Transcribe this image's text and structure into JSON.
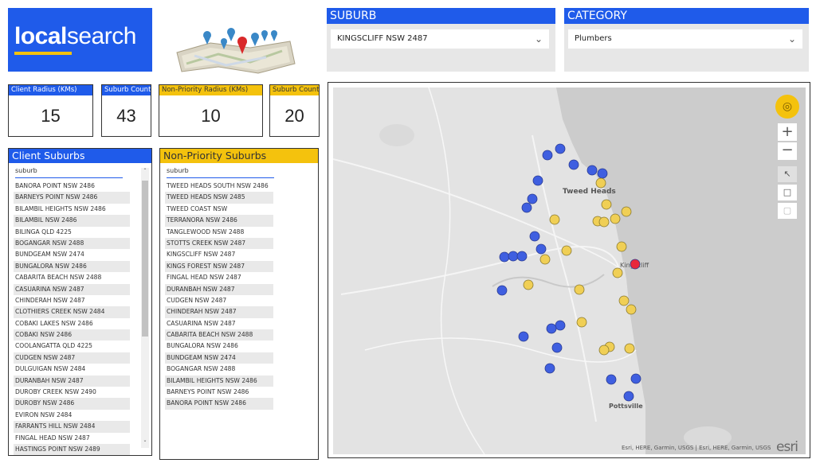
{
  "brand": {
    "logo_text": "localsearch"
  },
  "suburb_slicer": {
    "header": "SUBURB",
    "selected": "KINGSCLIFF NSW 2487"
  },
  "category_slicer": {
    "header": "CATEGORY",
    "selected": "Plumbers"
  },
  "cards": {
    "client_radius": {
      "label": "Client Radius (KMs)",
      "value": "15"
    },
    "suburb_count_1": {
      "label": "Suburb Count",
      "value": "43"
    },
    "non_priority_radius": {
      "label": "Non-Priority Radius (KMs)",
      "value": "10"
    },
    "suburb_count_2": {
      "label": "Suburb Count",
      "value": "20"
    }
  },
  "client_suburbs": {
    "title": "Client Suburbs",
    "column": "suburb",
    "rows": [
      "BANORA POINT NSW 2486",
      "BARNEYS POINT NSW 2486",
      "BILAMBIL HEIGHTS NSW 2486",
      "BILAMBIL NSW 2486",
      "BILINGA QLD 4225",
      "BOGANGAR NSW 2488",
      "BUNDGEAM NSW 2474",
      "BUNGALORA NSW 2486",
      "CABARITA BEACH NSW 2488",
      "CASUARINA NSW 2487",
      "CHINDERAH NSW 2487",
      "CLOTHIERS CREEK NSW 2484",
      "COBAKI LAKES NSW 2486",
      "COBAKI NSW 2486",
      "COOLANGATTA QLD 4225",
      "CUDGEN NSW 2487",
      "DULGUIGAN NSW 2484",
      "DURANBAH NSW 2487",
      "DUROBY CREEK NSW 2490",
      "DUROBY NSW 2486",
      "EVIRON NSW 2484",
      "FARRANTS HILL NSW 2484",
      "FINGAL HEAD NSW 2487",
      "HASTINGS POINT NSW 2489"
    ]
  },
  "non_priority_suburbs": {
    "title": "Non-Priority Suburbs",
    "column": "suburb",
    "rows": [
      "TWEED HEADS SOUTH NSW 2486",
      "TWEED HEADS NSW 2485",
      "TWEED COAST NSW",
      "TERRANORA NSW 2486",
      "TANGLEWOOD NSW 2488",
      "STOTTS CREEK NSW 2487",
      "KINGSCLIFF NSW 2487",
      "KINGS FOREST NSW 2487",
      "FINGAL HEAD NSW 2487",
      "DURANBAH NSW 2487",
      "CUDGEN NSW 2487",
      "CHINDERAH NSW 2487",
      "CASUARINA NSW 2487",
      "CABARITA BEACH NSW 2488",
      "BUNGALORA NSW 2486",
      "BUNDGEAM NSW 2474",
      "BOGANGAR NSW 2488",
      "BILAMBIL HEIGHTS NSW 2486",
      "BARNEYS POINT NSW 2486",
      "BANORA POINT NSW 2486"
    ]
  },
  "map": {
    "labels": {
      "tweed_heads": "Tweed Heads",
      "kingscliff": "Kingscliff",
      "pottsville": "Pottsville"
    },
    "attribution": "Esri, HERE, Garmin, USGS | Esri, HERE, Garmin, USGS",
    "esri_logo": "esri",
    "colors": {
      "client": "#3f5fe0",
      "non_priority": "#f0cf55",
      "selected": "#e8283c",
      "water": "#cfcfcf",
      "land": "#e6e6e6"
    }
  }
}
